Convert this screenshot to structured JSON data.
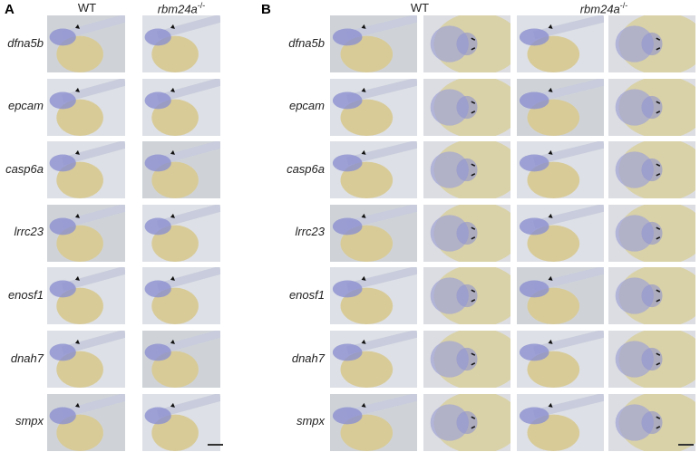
{
  "panels": [
    {
      "label": "A",
      "columns": [
        {
          "name": "WT"
        },
        {
          "name": "rbm24a",
          "superscript": "-/-"
        }
      ],
      "rows": [
        "dfna5b",
        "epcam",
        "casp6a",
        "lrrc23",
        "enosf1",
        "dnah7",
        "smpx"
      ]
    },
    {
      "label": "B",
      "columns": [
        {
          "name": "WT"
        },
        {
          "name": "rbm24a",
          "superscript": "-/-"
        }
      ],
      "rows": [
        "dfna5b",
        "epcam",
        "casp6a",
        "lrrc23",
        "enosf1",
        "dnah7",
        "smpx"
      ]
    }
  ]
}
